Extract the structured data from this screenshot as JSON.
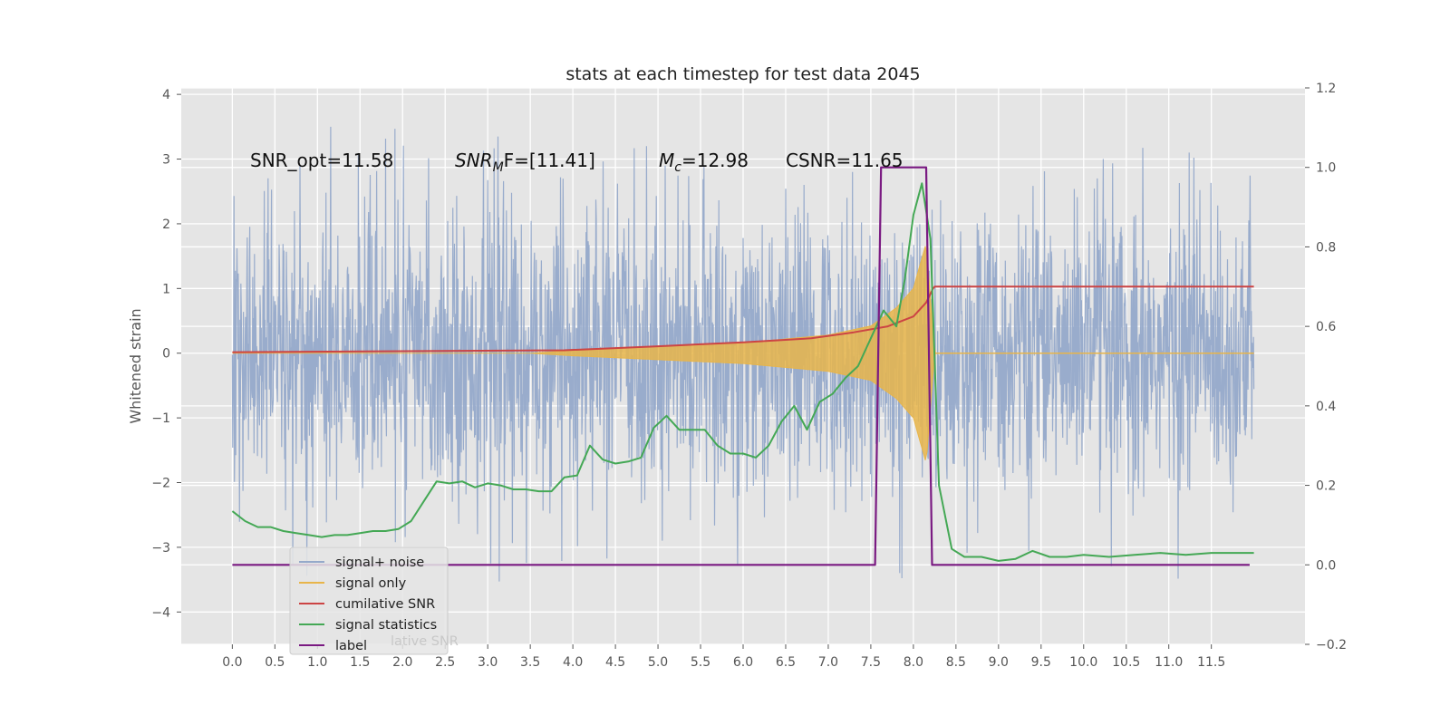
{
  "chart_data": {
    "type": "line",
    "title": "stats at each timestep for test data 2045",
    "xlabel": "",
    "ylabel": "Whitened strain",
    "xlim": [
      -0.6,
      12.6
    ],
    "ylim": [
      -4.5,
      4.1
    ],
    "y2lim": [
      -0.2,
      1.2
    ],
    "xticks": [
      0.0,
      0.5,
      1.0,
      1.5,
      2.0,
      2.5,
      3.0,
      3.5,
      4.0,
      4.5,
      5.0,
      5.5,
      6.0,
      6.5,
      7.0,
      7.5,
      8.0,
      8.5,
      9.0,
      9.5,
      10.0,
      10.5,
      11.0,
      11.5
    ],
    "xtick_labels": [
      "0.0",
      "0.5",
      "1.0",
      "1.5",
      "2.0",
      "2.5",
      "3.0",
      "3.5",
      "4.0",
      "4.5",
      "5.0",
      "5.5",
      "6.0",
      "6.5",
      "7.0",
      "7.5",
      "8.0",
      "8.5",
      "9.0",
      "9.5",
      "10.0",
      "10.5",
      "11.0",
      "11.5"
    ],
    "yticks": [
      4,
      3,
      2,
      1,
      0,
      -1,
      -2,
      -3,
      -4
    ],
    "ytick_labels": [
      "4",
      "3",
      "2",
      "1",
      "0",
      "−1",
      "−2",
      "−3",
      "−4"
    ],
    "y2ticks": [
      1.2,
      1.0,
      0.8,
      0.6,
      0.4,
      0.2,
      0.0,
      -0.2
    ],
    "y2tick_labels": [
      "1.2",
      "1.0",
      "0.8",
      "0.6",
      "0.4",
      "0.2",
      "0.0",
      "−0.2"
    ],
    "grid": true,
    "legend_position": "lower-left",
    "colors": {
      "noise": "#95a9ca",
      "signal": "#e8b54a",
      "cumulative": "#cc4444",
      "statistics": "#44a855",
      "label": "#7a1a82",
      "plot_bg": "#e5e5e5",
      "grid": "#ffffff"
    },
    "annotations": {
      "snr_opt": "SNR_opt=11.58",
      "snr_mf_main": "SNR",
      "snr_mf_sub": "M",
      "snr_mf_rest": "F=[11.41]",
      "mc_main": "M",
      "mc_sub": "c",
      "mc_rest": "=12.98",
      "csnr": "CSNR=11.65"
    },
    "series": [
      {
        "name": "signal+ noise",
        "axis": "left",
        "x_range": [
          0.0,
          12.0
        ],
        "envelope_typical": 1.6,
        "spike_max": 3.7,
        "spike_min": -4.1
      },
      {
        "name": "signal only",
        "axis": "left",
        "x": [
          0.0,
          3.5,
          4.0,
          5.0,
          6.0,
          7.0,
          7.5,
          7.8,
          8.0,
          8.15,
          8.25,
          12.0
        ],
        "amplitude": [
          0.0,
          0.0,
          0.04,
          0.1,
          0.16,
          0.28,
          0.42,
          0.7,
          1.0,
          1.7,
          0.0,
          0.0
        ]
      },
      {
        "name": "cumilative SNR",
        "axis": "right",
        "x": [
          0.0,
          3.9,
          5.0,
          6.0,
          6.8,
          7.3,
          7.7,
          8.0,
          8.15,
          8.23,
          8.25,
          12.0
        ],
        "y": [
          0.535,
          0.54,
          0.55,
          0.56,
          0.57,
          0.585,
          0.6,
          0.625,
          0.66,
          0.695,
          0.7,
          0.7
        ]
      },
      {
        "name": "signal statistics",
        "axis": "right",
        "x": [
          0.0,
          0.15,
          0.3,
          0.45,
          0.6,
          0.75,
          0.9,
          1.05,
          1.2,
          1.35,
          1.5,
          1.65,
          1.8,
          1.95,
          2.1,
          2.25,
          2.4,
          2.55,
          2.7,
          2.85,
          3.0,
          3.15,
          3.3,
          3.45,
          3.6,
          3.75,
          3.9,
          4.05,
          4.2,
          4.35,
          4.5,
          4.65,
          4.8,
          4.95,
          5.1,
          5.25,
          5.4,
          5.55,
          5.7,
          5.85,
          6.0,
          6.15,
          6.3,
          6.45,
          6.6,
          6.75,
          6.9,
          7.05,
          7.2,
          7.35,
          7.5,
          7.65,
          7.8,
          7.9,
          8.0,
          8.1,
          8.2,
          8.3,
          8.45,
          8.6,
          8.8,
          9.0,
          9.2,
          9.4,
          9.6,
          9.8,
          10.0,
          10.3,
          10.6,
          10.9,
          11.2,
          11.5,
          11.8,
          12.0
        ],
        "y": [
          0.135,
          0.11,
          0.095,
          0.095,
          0.085,
          0.08,
          0.075,
          0.07,
          0.075,
          0.075,
          0.08,
          0.085,
          0.085,
          0.09,
          0.11,
          0.16,
          0.21,
          0.205,
          0.21,
          0.195,
          0.205,
          0.2,
          0.19,
          0.19,
          0.185,
          0.185,
          0.22,
          0.225,
          0.3,
          0.265,
          0.255,
          0.26,
          0.27,
          0.345,
          0.375,
          0.34,
          0.34,
          0.34,
          0.3,
          0.28,
          0.28,
          0.27,
          0.3,
          0.36,
          0.4,
          0.34,
          0.41,
          0.43,
          0.47,
          0.5,
          0.57,
          0.64,
          0.6,
          0.72,
          0.88,
          0.96,
          0.82,
          0.2,
          0.04,
          0.02,
          0.02,
          0.01,
          0.015,
          0.035,
          0.02,
          0.02,
          0.025,
          0.02,
          0.025,
          0.03,
          0.025,
          0.03,
          0.03,
          0.03
        ]
      },
      {
        "name": "label",
        "axis": "right",
        "x": [
          0.0,
          7.55,
          7.62,
          8.15,
          8.22,
          11.95
        ],
        "y": [
          0.0,
          0.0,
          1.0,
          1.0,
          0.0,
          0.0
        ]
      }
    ],
    "legend_entries": [
      "signal+ noise",
      "signal only",
      "cumilative SNR",
      "signal statistics",
      "label"
    ],
    "legend_ghost": "lative SNR"
  }
}
